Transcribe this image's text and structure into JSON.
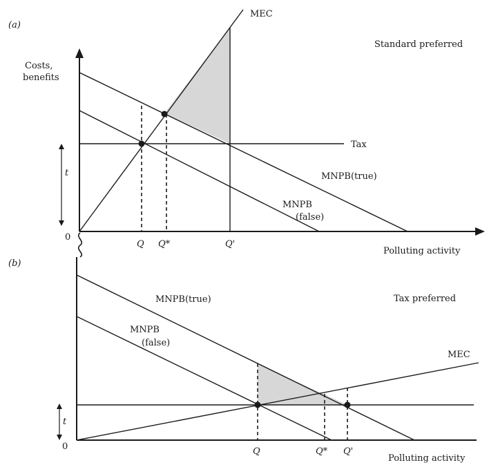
{
  "panel_a": {
    "tag": "(a)",
    "y_axis_label_1": "Costs,",
    "y_axis_label_2": "benefits",
    "origin": "0",
    "x_axis_label": "Polluting activity",
    "preferred_note": "Standard preferred",
    "mec_label": "MEC",
    "tax_label": "Tax",
    "mnpb_true_label": "MNPB(true)",
    "mnpb_false_label_1": "MNPB",
    "mnpb_false_label_2": "(false)",
    "tax_rate_label": "t",
    "q_label": "Q",
    "q_star_label": "Q*",
    "q_prime_label": "Q'"
  },
  "panel_b": {
    "tag": "(b)",
    "origin": "0",
    "x_axis_label": "Polluting activity",
    "preferred_note": "Tax preferred",
    "mec_label": "MEC",
    "mnpb_true_label": "MNPB(true)",
    "mnpb_false_label_1": "MNPB",
    "mnpb_false_label_2": "(false)",
    "tax_rate_label": "t",
    "q_label": "Q",
    "q_star_label": "Q*",
    "q_prime_label": "Q'"
  }
}
